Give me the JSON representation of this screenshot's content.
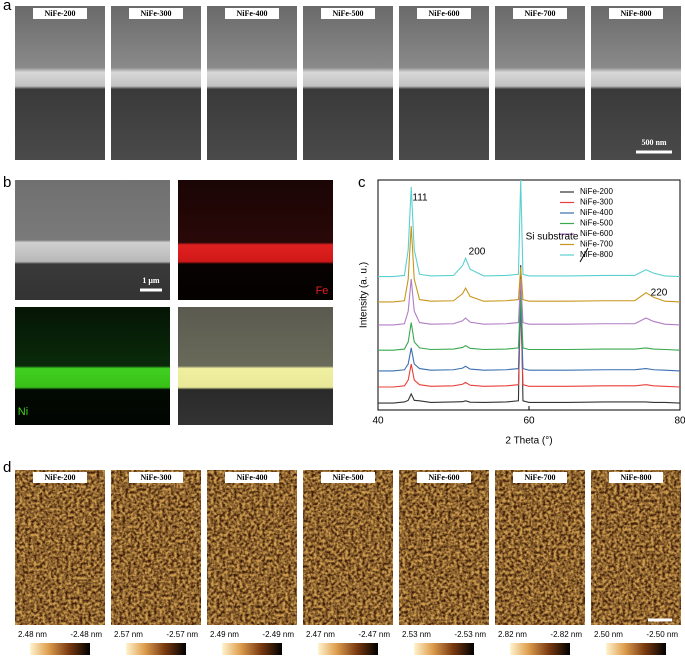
{
  "panel_a": {
    "label": "a",
    "images": [
      {
        "label": "NiFe-200"
      },
      {
        "label": "NiFe-300"
      },
      {
        "label": "NiFe-400"
      },
      {
        "label": "NiFe-500"
      },
      {
        "label": "NiFe-600"
      },
      {
        "label": "NiFe-700"
      },
      {
        "label": "NiFe-800"
      }
    ],
    "scale_bar": "500 nm"
  },
  "panel_b": {
    "label": "b",
    "scale_bar": "1 μm",
    "fe_label": "Fe",
    "ni_label": "Ni"
  },
  "chart_data": {
    "type": "line",
    "panel_label": "c",
    "xlabel": "2 Theta (°)",
    "ylabel": "Intensity (a. u.)",
    "x": [
      40,
      42,
      43.5,
      44.0,
      44.4,
      44.8,
      45.5,
      47,
      50,
      51.2,
      51.6,
      52.2,
      54,
      57,
      58.6,
      58.9,
      59.2,
      60,
      65,
      70,
      74,
      75.5,
      76.5,
      78,
      80
    ],
    "xlim": [
      40,
      80
    ],
    "xticks": [
      40,
      60,
      80
    ],
    "ylim": [
      0,
      100
    ],
    "legend": "upper right",
    "series": [
      {
        "name": "NiFe-200",
        "color": "#333333",
        "values": [
          3,
          3,
          3.5,
          4.2,
          7,
          4.2,
          4,
          3.3,
          3.5,
          3.6,
          4,
          3.4,
          3.3,
          3.5,
          4,
          63,
          4,
          3.3,
          3.3,
          3.5,
          3.5,
          3.5,
          3.3,
          3.3,
          3
        ]
      },
      {
        "name": "NiFe-300",
        "color": "#e8403a",
        "values": [
          10,
          10,
          10.5,
          13,
          20,
          13,
          11,
          10.3,
          10.5,
          11.2,
          12,
          10.8,
          10.3,
          10.5,
          11,
          45,
          11,
          10.3,
          10.3,
          10.5,
          10.5,
          11,
          10.5,
          10.3,
          10
        ]
      },
      {
        "name": "NiFe-400",
        "color": "#3a6fb0",
        "values": [
          17,
          17,
          17.5,
          20,
          27,
          20,
          18,
          17.3,
          17.5,
          18.2,
          19,
          17.8,
          17.3,
          17.5,
          18,
          47,
          18,
          17.3,
          17.3,
          17.5,
          17.5,
          18,
          17.5,
          17.3,
          17
        ]
      },
      {
        "name": "NiFe-500",
        "color": "#3aa84e",
        "values": [
          26,
          26,
          26.5,
          29.6,
          38,
          29.6,
          27,
          26.3,
          26.5,
          27.2,
          28,
          26.8,
          26.3,
          26.5,
          27,
          51,
          27,
          26.3,
          26.3,
          26.5,
          26.5,
          27,
          26.5,
          26.3,
          26
        ]
      },
      {
        "name": "NiFe-600",
        "color": "#b07cc6",
        "values": [
          37,
          37,
          37.5,
          43,
          57,
          43,
          38,
          37.3,
          37.5,
          38.8,
          40,
          38.2,
          37.3,
          37.5,
          38,
          57,
          38,
          37.3,
          37.3,
          37.5,
          37.5,
          40,
          38.5,
          37.3,
          37
        ]
      },
      {
        "name": "NiFe-700",
        "color": "#c8961e",
        "values": [
          47,
          47,
          47.5,
          56.9,
          80,
          56.9,
          48,
          47.3,
          47.5,
          50.6,
          53,
          49.4,
          47.3,
          47.5,
          48,
          62,
          48,
          47.3,
          47.3,
          47.5,
          47.5,
          51,
          49,
          47.3,
          47
        ]
      },
      {
        "name": "NiFe-800",
        "color": "#5cd0d0",
        "values": [
          58,
          58,
          58.5,
          69.7,
          97,
          69.7,
          59,
          58.3,
          58.5,
          62.8,
          66,
          61.2,
          58.3,
          58.5,
          59,
          100,
          59,
          58.3,
          58.3,
          58.5,
          58.5,
          61,
          59.5,
          58.3,
          58
        ]
      }
    ],
    "annotations": [
      "111",
      "200",
      "Si substrate",
      "220"
    ]
  },
  "panel_d": {
    "label": "d",
    "images": [
      {
        "label": "NiFe-200",
        "max": "2.48 nm",
        "min": "-2.48 nm"
      },
      {
        "label": "NiFe-300",
        "max": "2.57 nm",
        "min": "-2.57 nm"
      },
      {
        "label": "NiFe-400",
        "max": "2.49 nm",
        "min": "-2.49 nm"
      },
      {
        "label": "NiFe-500",
        "max": "2.47 nm",
        "min": "-2.47 nm"
      },
      {
        "label": "NiFe-600",
        "max": "2.53 nm",
        "min": "-2.53 nm"
      },
      {
        "label": "NiFe-700",
        "max": "2.82 nm",
        "min": "-2.82 nm"
      },
      {
        "label": "NiFe-800",
        "max": "2.50 nm",
        "min": "-2.50 nm"
      }
    ]
  }
}
